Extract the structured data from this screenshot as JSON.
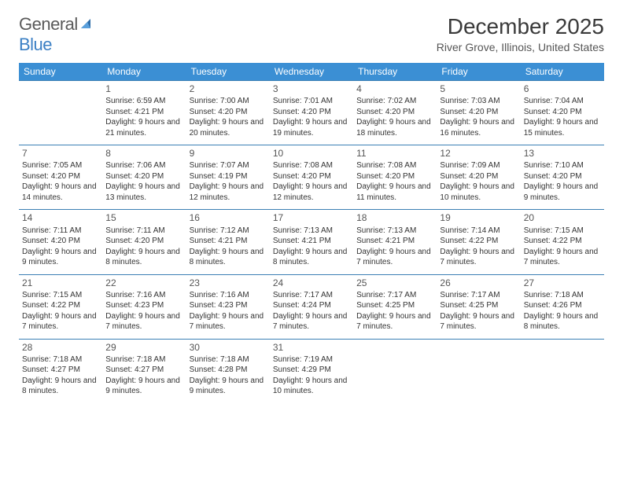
{
  "brand": {
    "name_gray": "General",
    "name_blue": "Blue"
  },
  "title": "December 2025",
  "location": "River Grove, Illinois, United States",
  "colors": {
    "header_bg": "#3b8fd4",
    "header_text": "#ffffff",
    "border": "#3b7fb4",
    "text": "#333333",
    "title_text": "#3a3a3a",
    "logo_gray": "#5a5a5a",
    "logo_blue": "#3b7fc4",
    "background": "#ffffff"
  },
  "typography": {
    "month_title_pt": 28,
    "location_pt": 14,
    "weekday_pt": 12,
    "daynum_pt": 12,
    "cell_pt": 10
  },
  "weekdays": [
    "Sunday",
    "Monday",
    "Tuesday",
    "Wednesday",
    "Thursday",
    "Friday",
    "Saturday"
  ],
  "weeks": [
    [
      null,
      {
        "n": "1",
        "sr": "6:59 AM",
        "ss": "4:21 PM",
        "dl": "9 hours and 21 minutes."
      },
      {
        "n": "2",
        "sr": "7:00 AM",
        "ss": "4:20 PM",
        "dl": "9 hours and 20 minutes."
      },
      {
        "n": "3",
        "sr": "7:01 AM",
        "ss": "4:20 PM",
        "dl": "9 hours and 19 minutes."
      },
      {
        "n": "4",
        "sr": "7:02 AM",
        "ss": "4:20 PM",
        "dl": "9 hours and 18 minutes."
      },
      {
        "n": "5",
        "sr": "7:03 AM",
        "ss": "4:20 PM",
        "dl": "9 hours and 16 minutes."
      },
      {
        "n": "6",
        "sr": "7:04 AM",
        "ss": "4:20 PM",
        "dl": "9 hours and 15 minutes."
      }
    ],
    [
      {
        "n": "7",
        "sr": "7:05 AM",
        "ss": "4:20 PM",
        "dl": "9 hours and 14 minutes."
      },
      {
        "n": "8",
        "sr": "7:06 AM",
        "ss": "4:20 PM",
        "dl": "9 hours and 13 minutes."
      },
      {
        "n": "9",
        "sr": "7:07 AM",
        "ss": "4:19 PM",
        "dl": "9 hours and 12 minutes."
      },
      {
        "n": "10",
        "sr": "7:08 AM",
        "ss": "4:20 PM",
        "dl": "9 hours and 12 minutes."
      },
      {
        "n": "11",
        "sr": "7:08 AM",
        "ss": "4:20 PM",
        "dl": "9 hours and 11 minutes."
      },
      {
        "n": "12",
        "sr": "7:09 AM",
        "ss": "4:20 PM",
        "dl": "9 hours and 10 minutes."
      },
      {
        "n": "13",
        "sr": "7:10 AM",
        "ss": "4:20 PM",
        "dl": "9 hours and 9 minutes."
      }
    ],
    [
      {
        "n": "14",
        "sr": "7:11 AM",
        "ss": "4:20 PM",
        "dl": "9 hours and 9 minutes."
      },
      {
        "n": "15",
        "sr": "7:11 AM",
        "ss": "4:20 PM",
        "dl": "9 hours and 8 minutes."
      },
      {
        "n": "16",
        "sr": "7:12 AM",
        "ss": "4:21 PM",
        "dl": "9 hours and 8 minutes."
      },
      {
        "n": "17",
        "sr": "7:13 AM",
        "ss": "4:21 PM",
        "dl": "9 hours and 8 minutes."
      },
      {
        "n": "18",
        "sr": "7:13 AM",
        "ss": "4:21 PM",
        "dl": "9 hours and 7 minutes."
      },
      {
        "n": "19",
        "sr": "7:14 AM",
        "ss": "4:22 PM",
        "dl": "9 hours and 7 minutes."
      },
      {
        "n": "20",
        "sr": "7:15 AM",
        "ss": "4:22 PM",
        "dl": "9 hours and 7 minutes."
      }
    ],
    [
      {
        "n": "21",
        "sr": "7:15 AM",
        "ss": "4:22 PM",
        "dl": "9 hours and 7 minutes."
      },
      {
        "n": "22",
        "sr": "7:16 AM",
        "ss": "4:23 PM",
        "dl": "9 hours and 7 minutes."
      },
      {
        "n": "23",
        "sr": "7:16 AM",
        "ss": "4:23 PM",
        "dl": "9 hours and 7 minutes."
      },
      {
        "n": "24",
        "sr": "7:17 AM",
        "ss": "4:24 PM",
        "dl": "9 hours and 7 minutes."
      },
      {
        "n": "25",
        "sr": "7:17 AM",
        "ss": "4:25 PM",
        "dl": "9 hours and 7 minutes."
      },
      {
        "n": "26",
        "sr": "7:17 AM",
        "ss": "4:25 PM",
        "dl": "9 hours and 7 minutes."
      },
      {
        "n": "27",
        "sr": "7:18 AM",
        "ss": "4:26 PM",
        "dl": "9 hours and 8 minutes."
      }
    ],
    [
      {
        "n": "28",
        "sr": "7:18 AM",
        "ss": "4:27 PM",
        "dl": "9 hours and 8 minutes."
      },
      {
        "n": "29",
        "sr": "7:18 AM",
        "ss": "4:27 PM",
        "dl": "9 hours and 9 minutes."
      },
      {
        "n": "30",
        "sr": "7:18 AM",
        "ss": "4:28 PM",
        "dl": "9 hours and 9 minutes."
      },
      {
        "n": "31",
        "sr": "7:19 AM",
        "ss": "4:29 PM",
        "dl": "9 hours and 10 minutes."
      },
      null,
      null,
      null
    ]
  ],
  "labels": {
    "sunrise": "Sunrise:",
    "sunset": "Sunset:",
    "daylight": "Daylight:"
  }
}
